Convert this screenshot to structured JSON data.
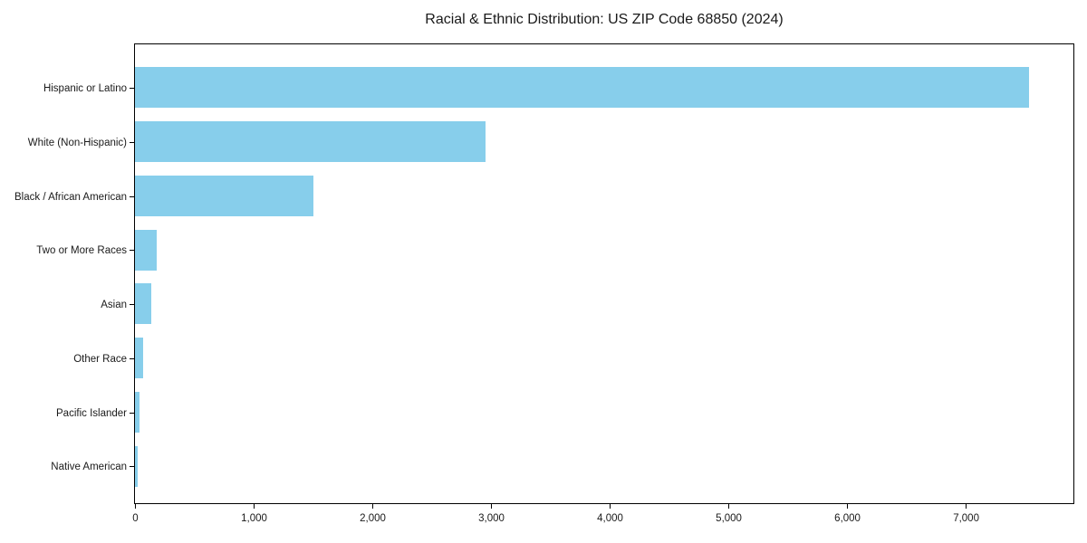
{
  "chart_data": {
    "type": "bar",
    "orientation": "horizontal",
    "title": "Racial & Ethnic Distribution: US ZIP Code 68850 (2024)",
    "categories": [
      "Hispanic or Latino",
      "White (Non-Hispanic)",
      "Black / African American",
      "Two or More Races",
      "Asian",
      "Other Race",
      "Pacific Islander",
      "Native American"
    ],
    "values": [
      7530,
      2950,
      1500,
      185,
      140,
      70,
      35,
      20
    ],
    "xlabel": "",
    "ylabel": "",
    "xlim": [
      0,
      7900
    ],
    "xticks": [
      0,
      1000,
      2000,
      3000,
      4000,
      5000,
      6000,
      7000
    ],
    "xtick_labels": [
      "0",
      "1,000",
      "2,000",
      "3,000",
      "4,000",
      "5,000",
      "6,000",
      "7,000"
    ],
    "bar_color": "#87CEEB",
    "axis_color": "#000000",
    "text_color": "#1a1a1a",
    "grid": false,
    "legend": false,
    "plot_background": "#ffffff"
  }
}
